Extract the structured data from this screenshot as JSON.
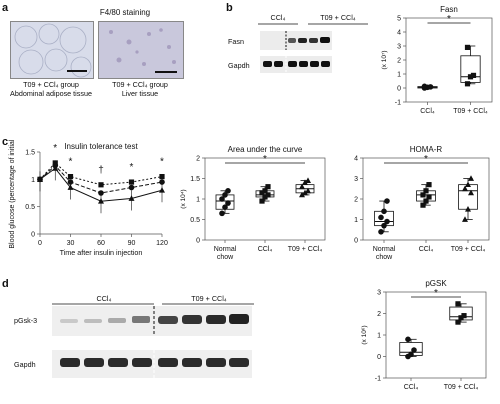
{
  "panels": {
    "a": "a",
    "b": "b",
    "c": "c",
    "d": "d"
  },
  "a": {
    "title": "F4/80 staining",
    "img1_caption": "T09 + CCl₄ group",
    "img1_caption2": "Abdominal adipose tissue",
    "img2_caption": "T09 + CCl₄ group",
    "img2_caption2": "Liver tissue"
  },
  "b": {
    "blot_groups": [
      "CCl₄",
      "T09 + CCl₄"
    ],
    "blot_rows": [
      "Fasn",
      "Gapdh"
    ]
  },
  "d": {
    "blot_groups": [
      "CCl₄",
      "T09 + CCl₄"
    ],
    "blot_rows": [
      "pGsk-3",
      "Gapdh"
    ]
  },
  "chart_data": [
    {
      "id": "fasn",
      "type": "box",
      "title": "Fasn",
      "ylabel": "(x 10⁷)",
      "ylim": [
        -1,
        5
      ],
      "yticks": [
        -1,
        0,
        1,
        2,
        3,
        4,
        5
      ],
      "categories": [
        "CCl₄",
        "T09 + CCl₄"
      ],
      "boxes": [
        {
          "min": 0.0,
          "q1": 0.0,
          "median": 0.05,
          "q3": 0.1,
          "max": 0.12,
          "points": [
            0.0,
            0.05,
            0.08,
            0.12
          ],
          "marker": "circle"
        },
        {
          "min": 0.3,
          "q1": 0.4,
          "median": 0.8,
          "q3": 2.3,
          "max": 3.0,
          "points": [
            0.3,
            0.8,
            0.9,
            2.9
          ],
          "marker": "square"
        }
      ],
      "significance": "*"
    },
    {
      "id": "itt",
      "type": "line",
      "title": "Insulin tolerance test",
      "xlabel": "Time after insulin injection",
      "ylabel": "Blood glucose (percentage of initial)",
      "xlim": [
        0,
        120
      ],
      "ylim": [
        0,
        1.5
      ],
      "xticks": [
        0,
        30,
        60,
        90,
        120
      ],
      "yticks": [
        0,
        0.5,
        1.0,
        1.5
      ],
      "x": [
        0,
        15,
        30,
        60,
        90,
        120
      ],
      "series": [
        {
          "values": [
            1.0,
            1.3,
            1.05,
            0.9,
            0.95,
            1.05
          ],
          "dash": "2,2",
          "marker": "square"
        },
        {
          "values": [
            1.0,
            1.25,
            0.95,
            0.75,
            0.85,
            0.95
          ],
          "dash": "4,2",
          "marker": "circle"
        },
        {
          "values": [
            1.0,
            1.2,
            0.85,
            0.6,
            0.65,
            0.8
          ],
          "dash": "",
          "marker": "triangle"
        }
      ],
      "annotations": [
        {
          "x": 15,
          "text": "*"
        },
        {
          "x": 30,
          "text": "*"
        },
        {
          "x": 60,
          "text": "†"
        },
        {
          "x": 90,
          "text": "*"
        },
        {
          "x": 120,
          "text": "*"
        }
      ]
    },
    {
      "id": "auc",
      "type": "box",
      "title": "Area under the curve",
      "ylabel": "(x 10⁴)",
      "ylim": [
        0,
        2.0
      ],
      "yticks": [
        0,
        0.5,
        1.0,
        1.5,
        2.0
      ],
      "categories": [
        "Normal chow",
        "CCl₄",
        "T09 + CCl₄"
      ],
      "boxes": [
        {
          "min": 0.65,
          "q1": 0.75,
          "median": 0.95,
          "q3": 1.1,
          "max": 1.2,
          "points": [
            0.65,
            0.8,
            0.9,
            1.0,
            1.1,
            1.2
          ],
          "marker": "circle"
        },
        {
          "min": 0.95,
          "q1": 1.05,
          "median": 1.1,
          "q3": 1.2,
          "max": 1.3,
          "points": [
            0.95,
            1.05,
            1.1,
            1.15,
            1.2,
            1.3
          ],
          "marker": "square"
        },
        {
          "min": 1.1,
          "q1": 1.15,
          "median": 1.25,
          "q3": 1.35,
          "max": 1.45,
          "points": [
            1.1,
            1.15,
            1.2,
            1.3,
            1.4,
            1.45
          ],
          "marker": "triangle"
        }
      ],
      "significance": "*"
    },
    {
      "id": "homa",
      "type": "box",
      "title": "HOMA-R",
      "ylabel": "",
      "ylim": [
        0,
        4
      ],
      "yticks": [
        0,
        1,
        2,
        3,
        4
      ],
      "categories": [
        "Normal chow",
        "CCl₄",
        "T09 + CCl₄"
      ],
      "boxes": [
        {
          "min": 0.4,
          "q1": 0.7,
          "median": 0.9,
          "q3": 1.4,
          "max": 1.9,
          "points": [
            0.4,
            0.7,
            0.9,
            1.1,
            1.4,
            1.9
          ],
          "marker": "circle"
        },
        {
          "min": 1.7,
          "q1": 1.9,
          "median": 2.2,
          "q3": 2.4,
          "max": 2.7,
          "points": [
            1.7,
            1.9,
            2.1,
            2.2,
            2.4,
            2.7
          ],
          "marker": "square"
        },
        {
          "min": 1.0,
          "q1": 1.5,
          "median": 2.4,
          "q3": 2.7,
          "max": 3.0,
          "points": [
            1.0,
            1.5,
            2.3,
            2.5,
            2.7,
            3.0
          ],
          "marker": "triangle"
        }
      ],
      "significance": "*"
    },
    {
      "id": "pgsk",
      "type": "box",
      "title": "pGSK",
      "ylabel": "(x 10⁶)",
      "ylim": [
        -1,
        3
      ],
      "yticks": [
        -1,
        0,
        1,
        2,
        3
      ],
      "categories": [
        "CCl₄",
        "T09 + CCl₄"
      ],
      "boxes": [
        {
          "min": 0.0,
          "q1": 0.05,
          "median": 0.2,
          "q3": 0.65,
          "max": 0.8,
          "points": [
            0.0,
            0.1,
            0.3,
            0.8
          ],
          "marker": "circle"
        },
        {
          "min": 1.6,
          "q1": 1.7,
          "median": 1.85,
          "q3": 2.3,
          "max": 2.45,
          "points": [
            1.6,
            1.8,
            1.9,
            2.45
          ],
          "marker": "square"
        }
      ],
      "significance": "*"
    }
  ]
}
